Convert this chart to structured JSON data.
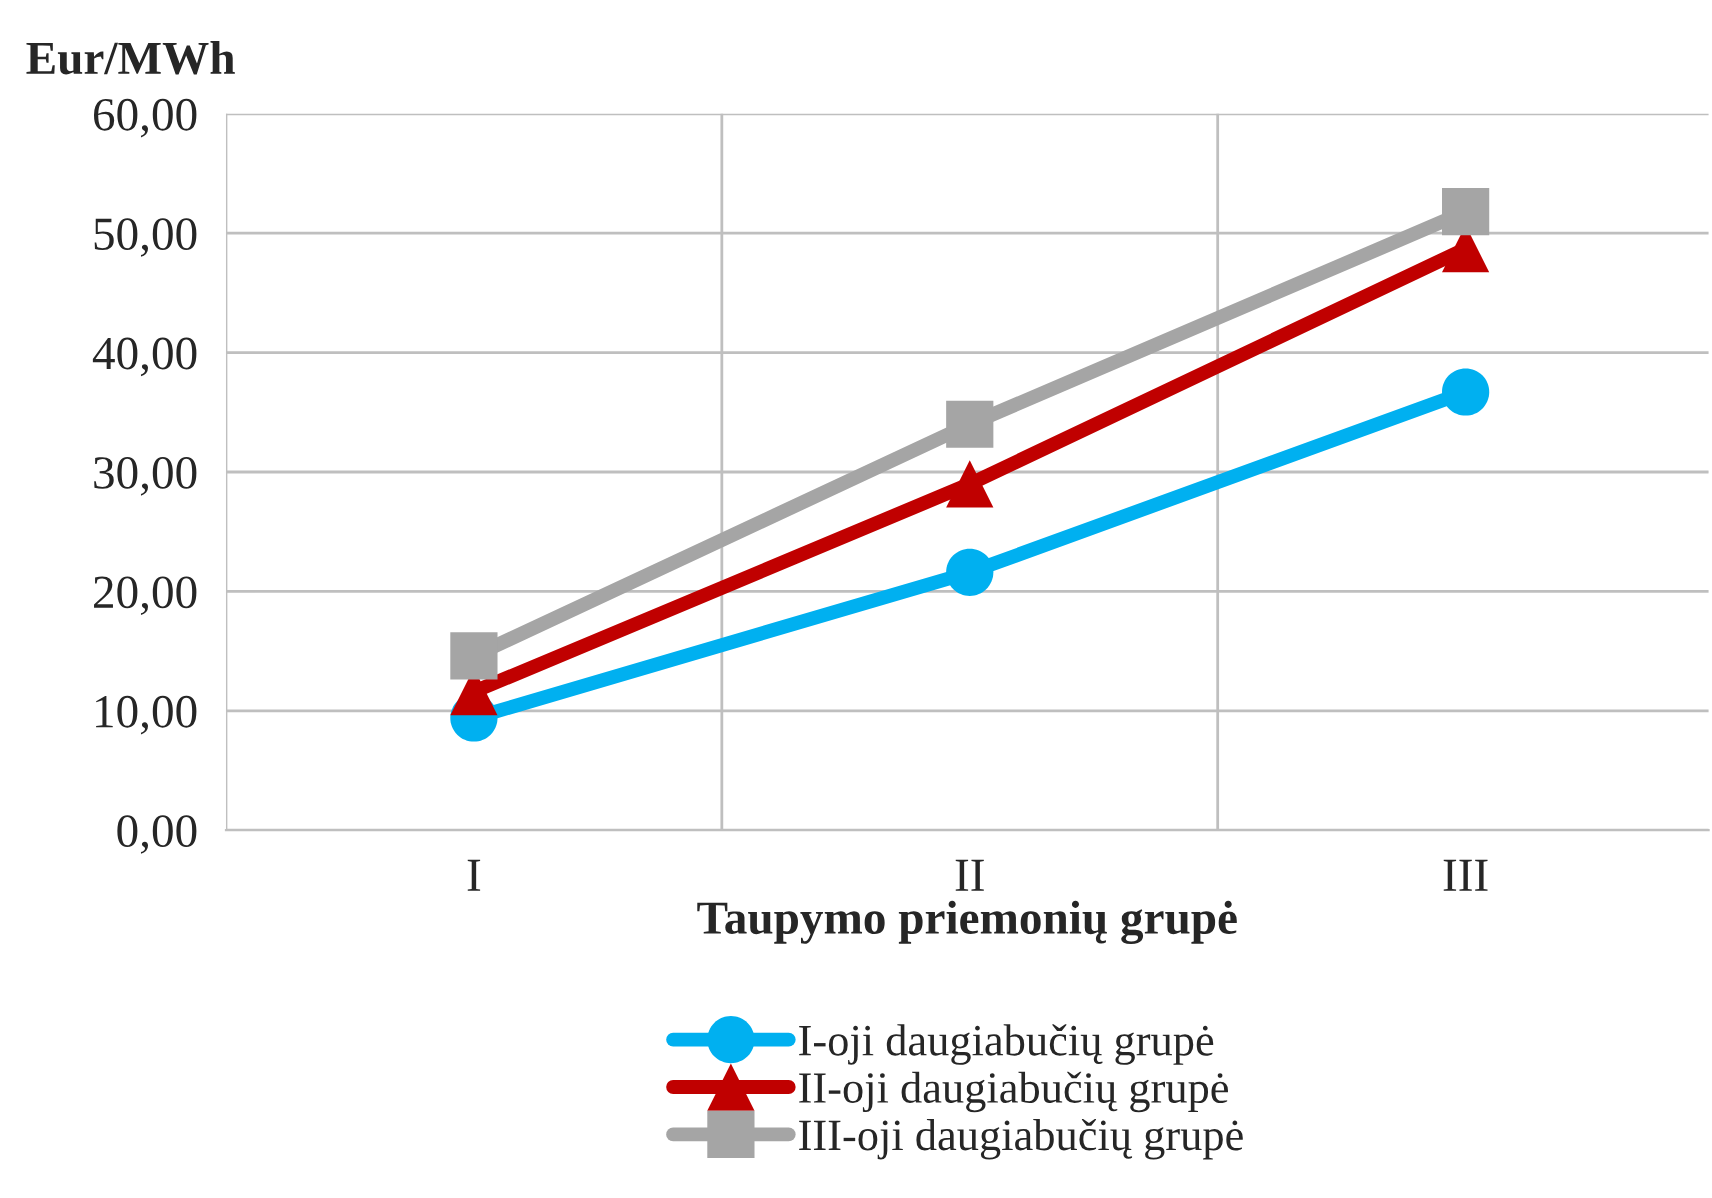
{
  "chart_data": {
    "type": "line",
    "ylabel": "Eur/MWh",
    "xlabel": "Taupymo priemonių grupė",
    "categories": [
      "I",
      "II",
      "III"
    ],
    "series": [
      {
        "name": "I-oji daugiabučių grupė",
        "color": "#00b0f0",
        "marker": "circle",
        "values": [
          9.4,
          21.6,
          36.7
        ]
      },
      {
        "name": "II-oji daugiabučių grupė",
        "color": "#c00000",
        "marker": "triangle",
        "values": [
          11.6,
          29.0,
          48.7
        ]
      },
      {
        "name": "III-oji daugiabučių grupė",
        "color": "#a5a5a5",
        "marker": "square",
        "values": [
          14.6,
          34.0,
          51.8
        ]
      }
    ],
    "ylim": [
      0,
      60
    ],
    "yticks": [
      {
        "value": 0,
        "label": "0,00"
      },
      {
        "value": 10,
        "label": "10,00"
      },
      {
        "value": 20,
        "label": "20,00"
      },
      {
        "value": 30,
        "label": "30,00"
      },
      {
        "value": 40,
        "label": "40,00"
      },
      {
        "value": 50,
        "label": "50,00"
      },
      {
        "value": 60,
        "label": "60,00"
      }
    ],
    "grid": true,
    "legend": "bottom",
    "line_style": "solid"
  }
}
